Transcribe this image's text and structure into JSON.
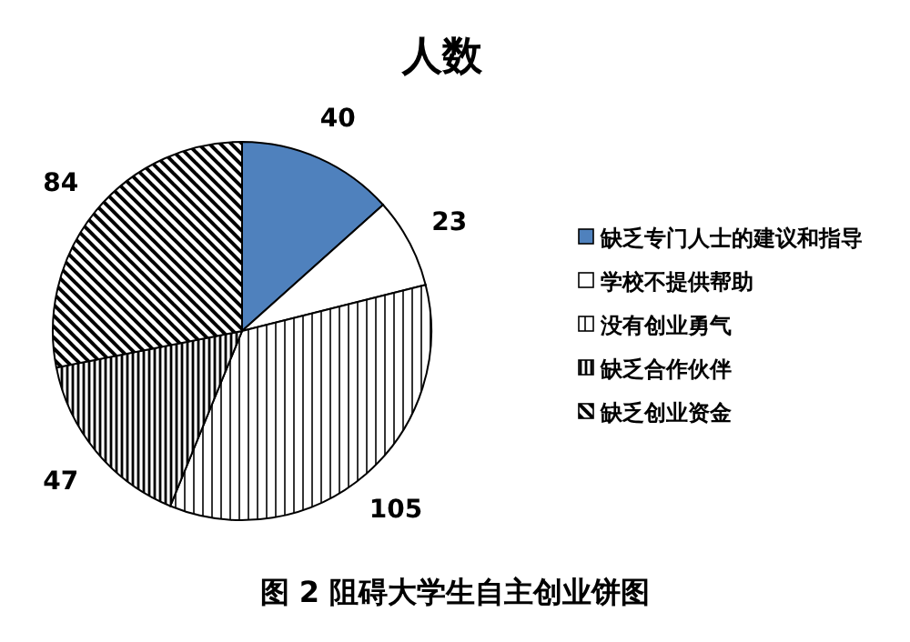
{
  "chart_data": {
    "type": "pie",
    "title": "人数",
    "categories": [
      "缺乏专门人士的建议和指导",
      "学校不提供帮助",
      "没有创业勇气",
      "缺乏合作伙伴",
      "缺乏创业资金"
    ],
    "values": [
      40,
      23,
      105,
      47,
      84
    ],
    "colors": [
      "#4f81bd",
      "#ffffff",
      "#000000",
      "#000000",
      "#000000"
    ],
    "data_labels": true,
    "legend": "right",
    "annotations": [
      "图 2  阻碍大学生自主创业饼图"
    ]
  }
}
